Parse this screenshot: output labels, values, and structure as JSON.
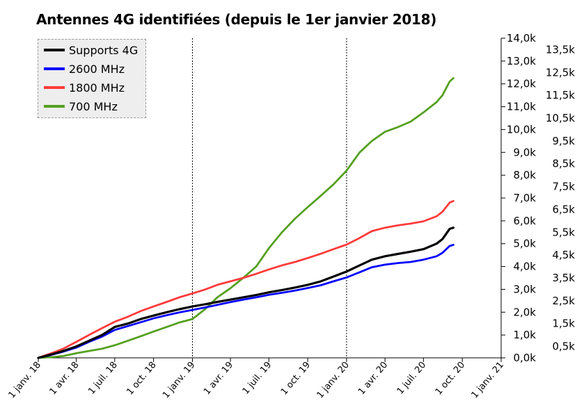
{
  "chart_data": {
    "type": "line",
    "title": "Antennes 4G identifiées (depuis le 1er janvier 2018)",
    "x_tick_labels": [
      "1 janv. 18",
      "1 avr. 18",
      "1 juil. 18",
      "1 oct. 18",
      "1 janv. 19",
      "1 avr. 19",
      "1 juil. 19",
      "1 oct. 19",
      "1 janv. 20",
      "1 avr. 20",
      "1 juil. 20",
      "1 oct. 20",
      "1 janv. 21"
    ],
    "x_tick_dates": [
      "2018-01-01",
      "2018-04-01",
      "2018-07-01",
      "2018-10-01",
      "2019-01-01",
      "2019-04-01",
      "2019-07-01",
      "2019-10-01",
      "2020-01-01",
      "2020-04-01",
      "2020-07-01",
      "2020-10-01",
      "2021-01-01"
    ],
    "x_range": [
      "2018-01-01",
      "2021-01-01"
    ],
    "vertical_markers": [
      "2019-01-01",
      "2020-01-01"
    ],
    "y_left": {
      "range": [
        0,
        14000
      ],
      "tick_labels": [
        "0,0k",
        "1,0k",
        "2,0k",
        "3,0k",
        "4,0k",
        "5,0k",
        "6,0k",
        "7,0k",
        "8,0k",
        "9,0k",
        "10,0k",
        "11,0k",
        "12,0k",
        "13,0k",
        "14,0k"
      ]
    },
    "y_right": {
      "tick_labels": [
        "0,5k",
        "1,5k",
        "2,5k",
        "3,5k",
        "4,5k",
        "5,5k",
        "6,5k",
        "7,5k",
        "8,5k",
        "9,5k",
        "10,5k",
        "11,5k",
        "12,5k",
        "13,5k"
      ]
    },
    "legend_position": "top-left",
    "series": [
      {
        "name": "Supports 4G",
        "color": "#000000",
        "points": [
          [
            "2018-01-01",
            0
          ],
          [
            "2018-02-01",
            150
          ],
          [
            "2018-03-01",
            300
          ],
          [
            "2018-04-01",
            500
          ],
          [
            "2018-05-01",
            750
          ],
          [
            "2018-06-01",
            1000
          ],
          [
            "2018-07-01",
            1350
          ],
          [
            "2018-08-01",
            1500
          ],
          [
            "2018-09-01",
            1700
          ],
          [
            "2018-10-01",
            1850
          ],
          [
            "2018-11-01",
            2000
          ],
          [
            "2018-12-01",
            2130
          ],
          [
            "2019-01-01",
            2250
          ],
          [
            "2019-02-01",
            2350
          ],
          [
            "2019-03-01",
            2450
          ],
          [
            "2019-04-01",
            2550
          ],
          [
            "2019-05-01",
            2650
          ],
          [
            "2019-06-01",
            2750
          ],
          [
            "2019-07-01",
            2870
          ],
          [
            "2019-08-01",
            2970
          ],
          [
            "2019-09-01",
            3080
          ],
          [
            "2019-10-01",
            3200
          ],
          [
            "2019-11-01",
            3350
          ],
          [
            "2019-12-01",
            3560
          ],
          [
            "2020-01-01",
            3780
          ],
          [
            "2020-02-01",
            4050
          ],
          [
            "2020-03-01",
            4300
          ],
          [
            "2020-04-01",
            4450
          ],
          [
            "2020-05-01",
            4550
          ],
          [
            "2020-06-01",
            4650
          ],
          [
            "2020-07-01",
            4760
          ],
          [
            "2020-08-01",
            5000
          ],
          [
            "2020-08-15",
            5200
          ],
          [
            "2020-09-01",
            5650
          ],
          [
            "2020-09-10",
            5700
          ]
        ]
      },
      {
        "name": "2600 MHz",
        "color": "#0000ff",
        "points": [
          [
            "2018-01-01",
            0
          ],
          [
            "2018-02-01",
            130
          ],
          [
            "2018-03-01",
            270
          ],
          [
            "2018-04-01",
            450
          ],
          [
            "2018-05-01",
            700
          ],
          [
            "2018-06-01",
            930
          ],
          [
            "2018-07-01",
            1220
          ],
          [
            "2018-08-01",
            1390
          ],
          [
            "2018-09-01",
            1560
          ],
          [
            "2018-10-01",
            1730
          ],
          [
            "2018-11-01",
            1870
          ],
          [
            "2018-12-01",
            1990
          ],
          [
            "2019-01-01",
            2100
          ],
          [
            "2019-02-01",
            2210
          ],
          [
            "2019-03-01",
            2320
          ],
          [
            "2019-04-01",
            2440
          ],
          [
            "2019-05-01",
            2550
          ],
          [
            "2019-06-01",
            2650
          ],
          [
            "2019-07-01",
            2760
          ],
          [
            "2019-08-01",
            2850
          ],
          [
            "2019-09-01",
            2950
          ],
          [
            "2019-10-01",
            3060
          ],
          [
            "2019-11-01",
            3180
          ],
          [
            "2019-12-01",
            3350
          ],
          [
            "2020-01-01",
            3520
          ],
          [
            "2020-02-01",
            3750
          ],
          [
            "2020-03-01",
            3970
          ],
          [
            "2020-04-01",
            4080
          ],
          [
            "2020-05-01",
            4150
          ],
          [
            "2020-06-01",
            4200
          ],
          [
            "2020-07-01",
            4300
          ],
          [
            "2020-08-01",
            4450
          ],
          [
            "2020-08-15",
            4600
          ],
          [
            "2020-09-01",
            4900
          ],
          [
            "2020-09-10",
            4950
          ]
        ]
      },
      {
        "name": "1800 MHz",
        "color": "#ff3b3b",
        "points": [
          [
            "2018-01-01",
            0
          ],
          [
            "2018-02-01",
            200
          ],
          [
            "2018-03-01",
            400
          ],
          [
            "2018-04-01",
            700
          ],
          [
            "2018-05-01",
            1000
          ],
          [
            "2018-06-01",
            1300
          ],
          [
            "2018-07-01",
            1580
          ],
          [
            "2018-08-01",
            1800
          ],
          [
            "2018-09-01",
            2050
          ],
          [
            "2018-10-01",
            2250
          ],
          [
            "2018-11-01",
            2450
          ],
          [
            "2018-12-01",
            2650
          ],
          [
            "2019-01-01",
            2820
          ],
          [
            "2019-02-01",
            3000
          ],
          [
            "2019-03-01",
            3200
          ],
          [
            "2019-04-01",
            3350
          ],
          [
            "2019-05-01",
            3500
          ],
          [
            "2019-06-01",
            3680
          ],
          [
            "2019-07-01",
            3870
          ],
          [
            "2019-08-01",
            4050
          ],
          [
            "2019-09-01",
            4200
          ],
          [
            "2019-10-01",
            4370
          ],
          [
            "2019-11-01",
            4560
          ],
          [
            "2019-12-01",
            4760
          ],
          [
            "2020-01-01",
            4960
          ],
          [
            "2020-02-01",
            5250
          ],
          [
            "2020-03-01",
            5550
          ],
          [
            "2020-04-01",
            5700
          ],
          [
            "2020-05-01",
            5800
          ],
          [
            "2020-06-01",
            5880
          ],
          [
            "2020-07-01",
            5980
          ],
          [
            "2020-08-01",
            6200
          ],
          [
            "2020-08-15",
            6400
          ],
          [
            "2020-09-01",
            6800
          ],
          [
            "2020-09-10",
            6870
          ]
        ]
      },
      {
        "name": "700 MHz",
        "color": "#55a020",
        "points": [
          [
            "2018-01-01",
            0
          ],
          [
            "2018-02-01",
            30
          ],
          [
            "2018-03-01",
            80
          ],
          [
            "2018-04-01",
            200
          ],
          [
            "2018-05-01",
            300
          ],
          [
            "2018-06-01",
            400
          ],
          [
            "2018-07-01",
            550
          ],
          [
            "2018-08-01",
            750
          ],
          [
            "2018-09-01",
            950
          ],
          [
            "2018-10-01",
            1150
          ],
          [
            "2018-11-01",
            1350
          ],
          [
            "2018-12-01",
            1550
          ],
          [
            "2019-01-01",
            1700
          ],
          [
            "2019-02-01",
            2150
          ],
          [
            "2019-03-01",
            2650
          ],
          [
            "2019-04-01",
            3050
          ],
          [
            "2019-05-01",
            3500
          ],
          [
            "2019-06-01",
            4000
          ],
          [
            "2019-07-01",
            4800
          ],
          [
            "2019-08-01",
            5500
          ],
          [
            "2019-09-01",
            6100
          ],
          [
            "2019-10-01",
            6600
          ],
          [
            "2019-11-01",
            7100
          ],
          [
            "2019-12-01",
            7600
          ],
          [
            "2020-01-01",
            8200
          ],
          [
            "2020-02-01",
            9000
          ],
          [
            "2020-03-01",
            9500
          ],
          [
            "2020-04-01",
            9900
          ],
          [
            "2020-05-01",
            10100
          ],
          [
            "2020-06-01",
            10350
          ],
          [
            "2020-07-01",
            10750
          ],
          [
            "2020-08-01",
            11200
          ],
          [
            "2020-08-15",
            11500
          ],
          [
            "2020-09-01",
            12100
          ],
          [
            "2020-09-10",
            12250
          ]
        ]
      }
    ]
  }
}
